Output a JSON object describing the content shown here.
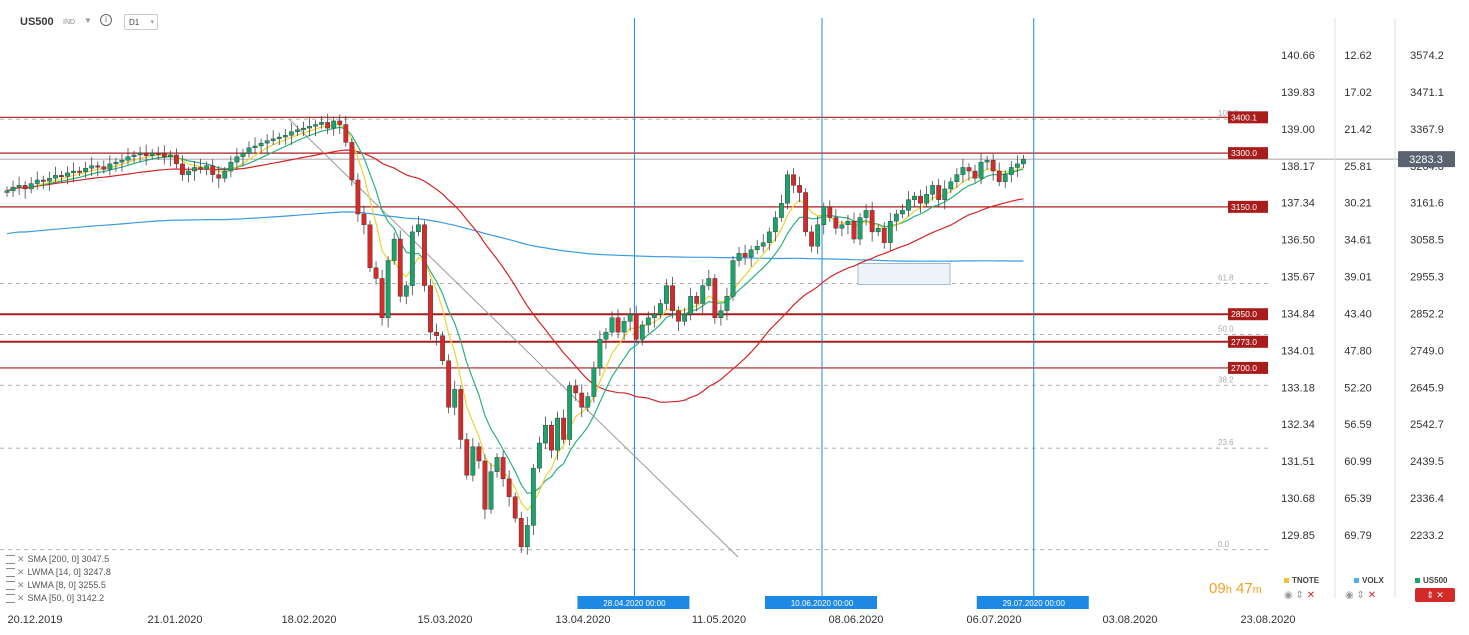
{
  "toolbar": {
    "symbol": "US500",
    "symbol_tag": "IND",
    "timeframe": "D1"
  },
  "legend": [
    {
      "text": "SMA [200,  0] 3047.5"
    },
    {
      "text": "LWMA [14,  0] 3247.8"
    },
    {
      "text": "LWMA [8,  0] 3255.5"
    },
    {
      "text": "SMA [50,  0] 3142.2"
    }
  ],
  "timer": {
    "hours": "09",
    "h": "h",
    "minutes": "47",
    "m": "m"
  },
  "instruments": [
    {
      "name": "TNOTE",
      "color": "#f2c230"
    },
    {
      "name": "VOLX",
      "color": "#4fb3e8"
    },
    {
      "name": "US500",
      "color": "#1aa36a"
    }
  ],
  "chart_data": {
    "type": "candlestick",
    "title": "US500",
    "x_tick_labels": [
      "20.12.2019",
      "21.01.2020",
      "18.02.2020",
      "15.03.2020",
      "13.04.2020",
      "11.05.2020",
      "08.06.2020",
      "06.07.2020",
      "03.08.2020",
      "23.08.2020"
    ],
    "y_axes": [
      {
        "name": "TNOTE",
        "ticks": [
          "140.66",
          "139.83",
          "139.00",
          "138.17",
          "137.34",
          "136.50",
          "135.67",
          "134.84",
          "134.01",
          "133.18",
          "132.34",
          "131.51",
          "130.68",
          "129.85"
        ]
      },
      {
        "name": "VOLX",
        "ticks": [
          "12.62",
          "17.02",
          "21.42",
          "25.81",
          "30.21",
          "34.61",
          "39.01",
          "43.40",
          "47.80",
          "52.20",
          "56.59",
          "60.99",
          "65.39",
          "69.79"
        ]
      },
      {
        "name": "US500",
        "ticks": [
          "3574.2",
          "3471.1",
          "3367.9",
          "3264.8",
          "3161.6",
          "3058.5",
          "2955.3",
          "2852.2",
          "2749.0",
          "2645.9",
          "2542.7",
          "2439.5",
          "2336.4",
          "2233.2"
        ]
      }
    ],
    "current_price": "3283.3",
    "horizontal_levels": [
      {
        "label": "3400.1",
        "value": 3400.1
      },
      {
        "label": "3300.0",
        "value": 3300.0
      },
      {
        "label": "3150.0",
        "value": 3150.0
      },
      {
        "label": "2850.0",
        "value": 2850.0
      },
      {
        "label": "2773.0",
        "value": 2773.0
      },
      {
        "label": "2700.0",
        "value": 2700.0
      }
    ],
    "fibonacci": {
      "high": 3395.0,
      "low": 2191.9,
      "levels": [
        {
          "label": "100.0",
          "ratio": 1.0
        },
        {
          "label": "61.8",
          "ratio": 0.618
        },
        {
          "label": "50.0",
          "ratio": 0.5
        },
        {
          "label": "38.2",
          "ratio": 0.382
        },
        {
          "label": "23.6",
          "ratio": 0.236
        },
        {
          "label": "0.0",
          "ratio": 0.0
        }
      ]
    },
    "vertical_markers": [
      {
        "label": "28.04.2020 00:00",
        "bar": 89
      },
      {
        "label": "10.06.2020 00:00",
        "bar": 120
      },
      {
        "label": "29.07.2020 00:00",
        "bar": 155
      }
    ],
    "indicators": [
      {
        "name": "SMA 200",
        "value": 3047.5,
        "color": "#3d9be0"
      },
      {
        "name": "LWMA 14",
        "value": 3247.8,
        "color": "#2bb27d"
      },
      {
        "name": "LWMA 8",
        "value": 3255.5,
        "color": "#e8d43a"
      },
      {
        "name": "SMA 50",
        "value": 3142.2,
        "color": "#d42525"
      }
    ],
    "closes": [
      3195,
      3205,
      3210,
      3200,
      3215,
      3225,
      3222,
      3230,
      3238,
      3235,
      3245,
      3250,
      3248,
      3258,
      3265,
      3262,
      3255,
      3270,
      3275,
      3280,
      3290,
      3295,
      3300,
      3293,
      3300,
      3298,
      3290,
      3295,
      3270,
      3240,
      3250,
      3260,
      3255,
      3265,
      3240,
      3230,
      3250,
      3275,
      3290,
      3300,
      3315,
      3320,
      3328,
      3335,
      3340,
      3345,
      3350,
      3360,
      3365,
      3370,
      3375,
      3380,
      3386,
      3370,
      3390,
      3380,
      3330,
      3225,
      3130,
      3100,
      2980,
      2950,
      2840,
      3000,
      3060,
      2900,
      2930,
      3080,
      3100,
      2930,
      2800,
      2790,
      2720,
      2590,
      2640,
      2500,
      2400,
      2480,
      2440,
      2305,
      2410,
      2450,
      2390,
      2340,
      2280,
      2200,
      2260,
      2420,
      2490,
      2540,
      2470,
      2560,
      2500,
      2650,
      2630,
      2590,
      2620,
      2700,
      2780,
      2800,
      2840,
      2800,
      2830,
      2850,
      2780,
      2820,
      2840,
      2850,
      2880,
      2930,
      2860,
      2830,
      2850,
      2900,
      2880,
      2930,
      2950,
      2840,
      2860,
      2900,
      3000,
      3020,
      3010,
      3030,
      3040,
      3050,
      3080,
      3120,
      3160,
      3240,
      3210,
      3190,
      3080,
      3040,
      3100,
      3150,
      3120,
      3090,
      3100,
      3110,
      3060,
      3120,
      3140,
      3080,
      3090,
      3050,
      3110,
      3130,
      3140,
      3170,
      3180,
      3160,
      3185,
      3210,
      3170,
      3200,
      3220,
      3240,
      3260,
      3250,
      3230,
      3275,
      3280,
      3250,
      3220,
      3240,
      3260,
      3270,
      3283
    ]
  }
}
